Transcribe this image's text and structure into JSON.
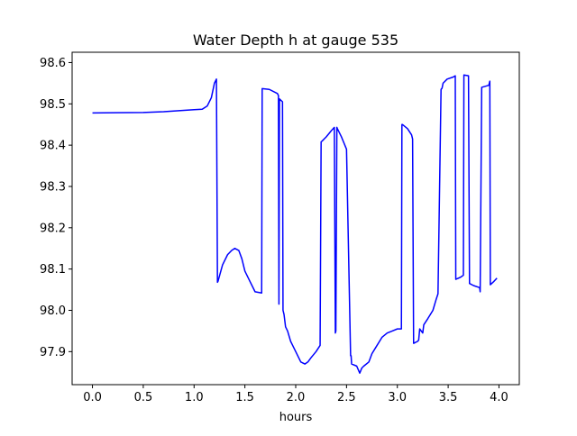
{
  "chart_data": {
    "type": "line",
    "title": "Water Depth h at gauge 535",
    "xlabel": "hours",
    "ylabel": "",
    "xlim": [
      -0.2,
      4.2
    ],
    "ylim": [
      97.82,
      98.625
    ],
    "xticks": [
      "0.0",
      "0.5",
      "1.0",
      "1.5",
      "2.0",
      "2.5",
      "3.0",
      "3.5",
      "4.0"
    ],
    "xtick_values": [
      0,
      0.5,
      1,
      1.5,
      2,
      2.5,
      3,
      3.5,
      4
    ],
    "yticks": [
      "97.9",
      "98.0",
      "98.1",
      "98.2",
      "98.3",
      "98.4",
      "98.5",
      "98.6"
    ],
    "ytick_values": [
      97.9,
      98.0,
      98.1,
      98.2,
      98.3,
      98.4,
      98.5,
      98.6
    ],
    "grid": false,
    "legend": "none",
    "series": [
      {
        "color": "#0000ff",
        "x": [
          0,
          0.5,
          0.7,
          1.0,
          1.08,
          1.13,
          1.17,
          1.2,
          1.22,
          1.23,
          1.235,
          1.28,
          1.33,
          1.37,
          1.4,
          1.44,
          1.47,
          1.5,
          1.55,
          1.6,
          1.665,
          1.67,
          1.74,
          1.82,
          1.83,
          1.835,
          1.84,
          1.87,
          1.875,
          1.885,
          1.9,
          1.92,
          1.95,
          2.0,
          2.05,
          2.09,
          2.12,
          2.15,
          2.2,
          2.24,
          2.25,
          2.26,
          2.3,
          2.35,
          2.38,
          2.39,
          2.395,
          2.405,
          2.41,
          2.45,
          2.5,
          2.54,
          2.545,
          2.55,
          2.6,
          2.63,
          2.65,
          2.67,
          2.72,
          2.75,
          2.8,
          2.85,
          2.9,
          2.95,
          3.0,
          3.04,
          3.045,
          3.05,
          3.1,
          3.14,
          3.15,
          3.16,
          3.2,
          3.21,
          3.22,
          3.25,
          3.26,
          3.3,
          3.35,
          3.38,
          3.4,
          3.43,
          3.44,
          3.45,
          3.49,
          3.55,
          3.57,
          3.575,
          3.62,
          3.65,
          3.655,
          3.7,
          3.71,
          3.75,
          3.81,
          3.815,
          3.83,
          3.9,
          3.91,
          3.915,
          3.95,
          3.98
        ],
        "y": [
          98.478,
          98.479,
          98.481,
          98.486,
          98.487,
          98.495,
          98.515,
          98.55,
          98.56,
          98.068,
          98.07,
          98.11,
          98.135,
          98.145,
          98.15,
          98.145,
          98.125,
          98.095,
          98.07,
          98.045,
          98.042,
          98.537,
          98.535,
          98.525,
          98.52,
          98.015,
          98.512,
          98.505,
          98.0,
          97.99,
          97.96,
          97.95,
          97.925,
          97.9,
          97.875,
          97.87,
          97.875,
          97.885,
          97.9,
          97.915,
          98.408,
          98.41,
          98.42,
          98.435,
          98.443,
          97.945,
          97.95,
          98.443,
          98.44,
          98.42,
          98.39,
          97.89,
          97.89,
          97.87,
          97.865,
          97.848,
          97.86,
          97.865,
          97.875,
          97.895,
          97.915,
          97.935,
          97.945,
          97.95,
          97.955,
          97.955,
          98.45,
          98.45,
          98.44,
          98.425,
          98.415,
          97.92,
          97.925,
          97.928,
          97.955,
          97.945,
          97.965,
          97.98,
          98.0,
          98.025,
          98.04,
          98.535,
          98.538,
          98.55,
          98.56,
          98.565,
          98.568,
          98.075,
          98.08,
          98.085,
          98.57,
          98.568,
          98.065,
          98.06,
          98.055,
          98.045,
          98.54,
          98.545,
          98.555,
          98.062,
          98.07,
          98.078
        ]
      }
    ]
  }
}
